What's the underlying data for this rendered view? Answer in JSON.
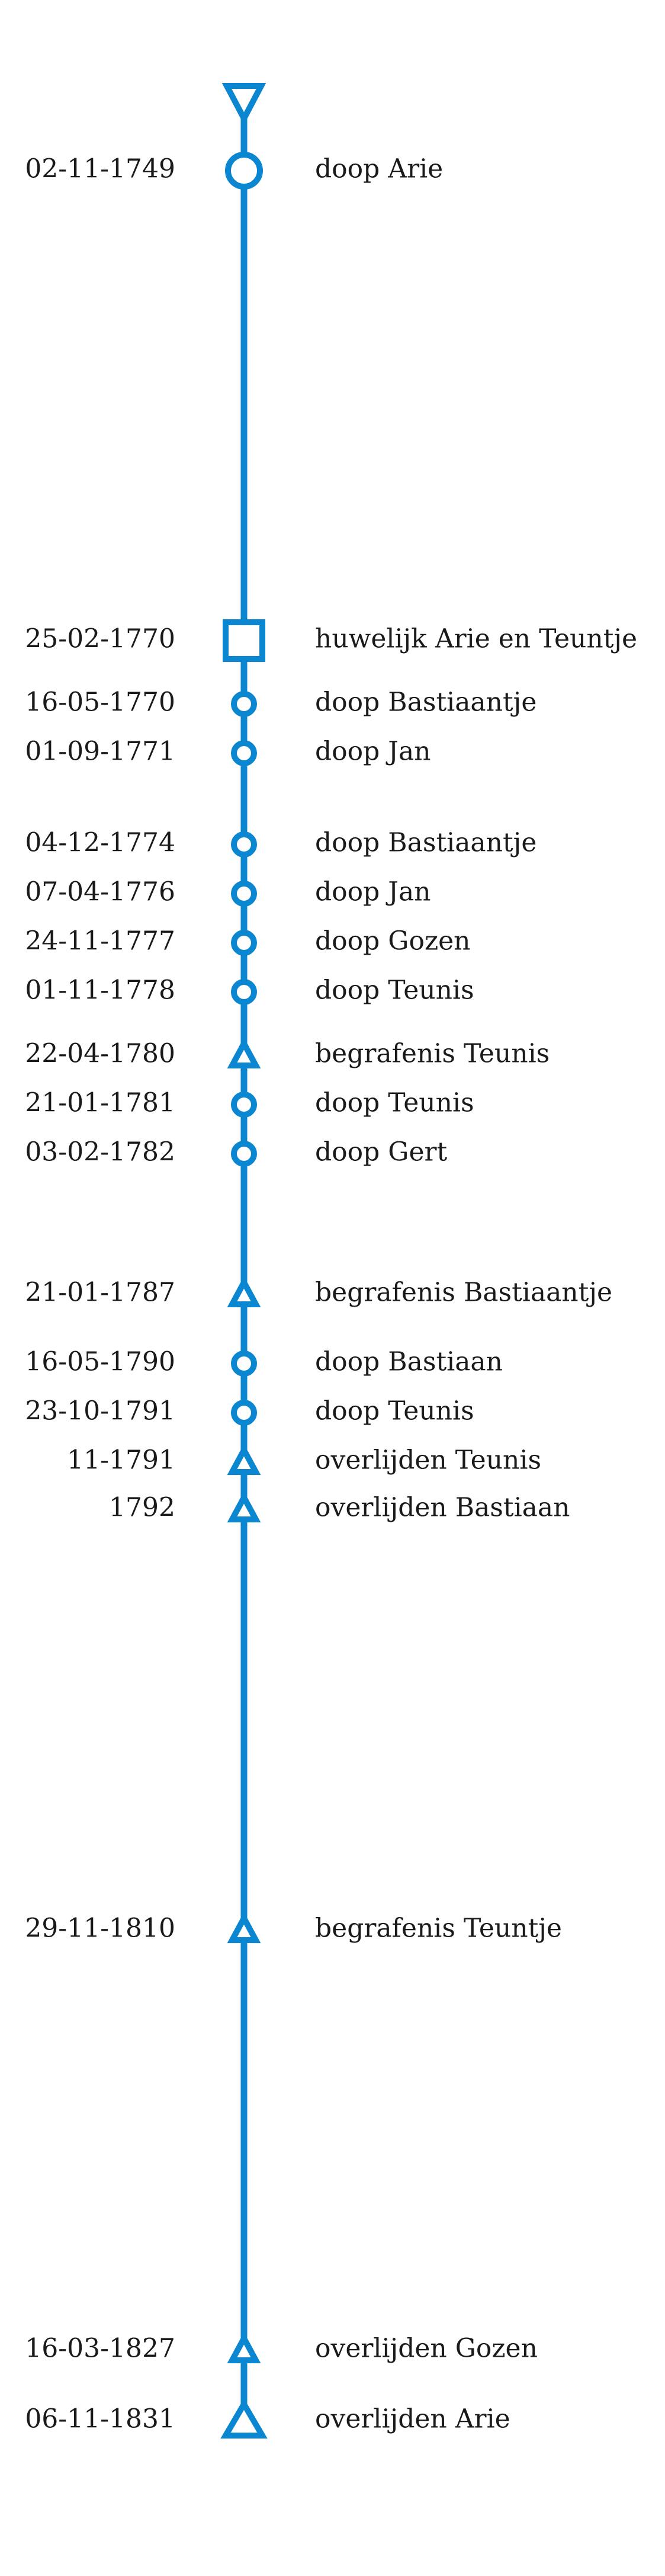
{
  "colors": {
    "line": "#0a87d0",
    "text": "#1a1a1a",
    "background": "#ffffff"
  },
  "start_marker_icon": "downward-triangle-icon",
  "events": [
    {
      "date": "02-11-1749",
      "label": "doop Arie",
      "marker": "circle-large-icon"
    },
    {
      "date": "25-02-1770",
      "label": "huwelijk Arie en Teuntje",
      "marker": "square-icon"
    },
    {
      "date": "16-05-1770",
      "label": "doop Bastiaantje",
      "marker": "circle-icon"
    },
    {
      "date": "01-09-1771",
      "label": "doop Jan",
      "marker": "circle-icon"
    },
    {
      "date": "04-12-1774",
      "label": "doop Bastiaantje",
      "marker": "circle-icon"
    },
    {
      "date": "07-04-1776",
      "label": "doop Jan",
      "marker": "circle-icon"
    },
    {
      "date": "24-11-1777",
      "label": "doop Gozen",
      "marker": "circle-icon"
    },
    {
      "date": "01-11-1778",
      "label": "doop Teunis",
      "marker": "circle-icon"
    },
    {
      "date": "22-04-1780",
      "label": "begrafenis Teunis",
      "marker": "triangle-icon"
    },
    {
      "date": "21-01-1781",
      "label": "doop Teunis",
      "marker": "circle-icon"
    },
    {
      "date": "03-02-1782",
      "label": "doop Gert",
      "marker": "circle-icon"
    },
    {
      "date": "21-01-1787",
      "label": "begrafenis Bastiaantje",
      "marker": "triangle-icon"
    },
    {
      "date": "16-05-1790",
      "label": "doop Bastiaan",
      "marker": "circle-icon"
    },
    {
      "date": "23-10-1791",
      "label": "doop Teunis",
      "marker": "circle-icon"
    },
    {
      "date": "11-1791",
      "label": "overlijden Teunis",
      "marker": "triangle-icon"
    },
    {
      "date": "1792",
      "label": "overlijden Bastiaan",
      "marker": "triangle-icon"
    },
    {
      "date": "29-11-1810",
      "label": "begrafenis Teuntje",
      "marker": "triangle-icon"
    },
    {
      "date": "16-03-1827",
      "label": "overlijden Gozen",
      "marker": "triangle-icon"
    },
    {
      "date": "06-11-1831",
      "label": "overlijden Arie",
      "marker": "triangle-large-icon"
    }
  ]
}
